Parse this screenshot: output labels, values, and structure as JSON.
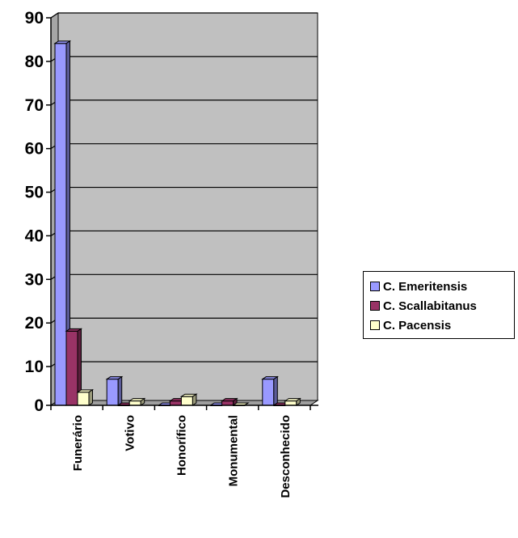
{
  "chart_data": {
    "type": "bar",
    "categories": [
      "Funerário",
      "Votivo",
      "Honorífico",
      "Monumental",
      "Desconhecido"
    ],
    "series": [
      {
        "name": "C. Emeritensis",
        "values": [
          83,
          6,
          0,
          0,
          6
        ],
        "color": "#9999ff"
      },
      {
        "name": "C. Scallabitanus",
        "values": [
          17,
          0,
          1,
          1,
          0
        ],
        "color": "#993366"
      },
      {
        "name": "C. Pacensis",
        "values": [
          3,
          1,
          2,
          0,
          1
        ],
        "color": "#ffffcc"
      }
    ],
    "ylim": [
      0,
      90
    ],
    "yticks": [
      0,
      10,
      20,
      30,
      40,
      50,
      60,
      70,
      80,
      90
    ],
    "grid": true,
    "legend_position": "right",
    "plot_background": "#c0c0c0"
  }
}
